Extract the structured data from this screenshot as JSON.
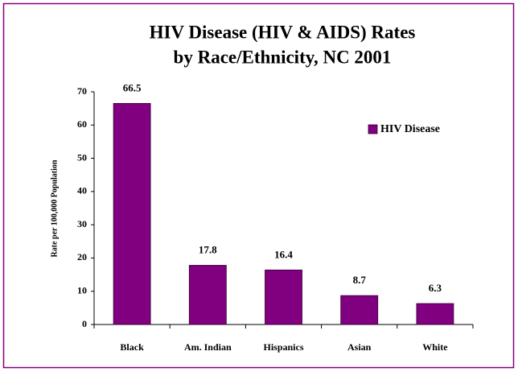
{
  "chart_data": {
    "type": "bar",
    "title": [
      "HIV Disease (HIV & AIDS) Rates",
      "by Race/Ethnicity, NC 2001"
    ],
    "y_label": "Rate per 100,000 Population",
    "categories": [
      "Black",
      "Am. Indian",
      "Hispanics",
      "Asian",
      "White"
    ],
    "series": [
      {
        "name": "HIV Disease",
        "color": "#800080",
        "values": [
          66.5,
          17.8,
          16.4,
          8.7,
          6.3
        ]
      }
    ],
    "ylim": [
      0,
      70
    ],
    "yticks": [
      0,
      10,
      20,
      30,
      40,
      50,
      60,
      70
    ],
    "grid": false,
    "legend": "upper right"
  }
}
